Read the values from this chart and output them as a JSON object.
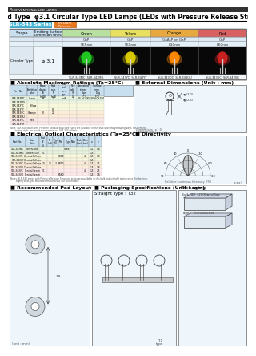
{
  "bg_color": "#ffffff",
  "top_bar_color": "#222222",
  "title_small": "CONVENTIONAL LED LAMPS",
  "title_main": "Standard Type  φ3.1 Circular Type LED Lamps (LEDs with Pressure Release Structure)",
  "series_label": "SLR-343 Series",
  "series_badge_color": "#4ab8d8",
  "pressure_badge": "Pressure\nRelease",
  "pressure_badge_color": "#e87820",
  "color_labels": [
    "Green",
    "Yellow",
    "Orange",
    "Red"
  ],
  "color_material": [
    "GaP",
    "",
    "GaAsP on GaP",
    ""
  ],
  "color_wavelength": [
    "565nm",
    "560nm",
    "610nm",
    "660nm"
  ],
  "led_hex": [
    "#22bb22",
    "#ddcc00",
    "#ff7700",
    "#cc1111"
  ],
  "shape_label": "Circular Type",
  "shape_dim": "φ 3.1",
  "pn_row": [
    "SLR-343MC  SLR-343MG",
    "SLR-343YC  SLR-343YY",
    "SLR-343OC  SLR-343OU",
    "SLR-343VC  SLR-343VR"
  ],
  "abs_max_title": "■ Absolute Maximum Ratings (Ta=25°C)",
  "ext_dim_title": "■ External Dimensions (Unit : mm)",
  "elec_opt_title": "■ Electrical Optical Characteristics (Ta=25°C)",
  "directivity_title": "■ Directivity",
  "rec_layout_title": "■ Recommended Pad Layout",
  "pkg_spec_title": "■ Packaging Specifications (Unit : mm)",
  "pkg_title2": "Packaging",
  "straight_type": "Straight Type : T32",
  "bulk_text": "Bulk (JE) : 2000pcs/Box",
  "tape_text": "Tape :  2000pcs/Box",
  "light_blue": "#d8eef8",
  "very_light_blue": "#eef6fc",
  "table_header_blue": "#c8dff0",
  "section_line_color": "#444444",
  "watermark_color": "#dde8f0"
}
